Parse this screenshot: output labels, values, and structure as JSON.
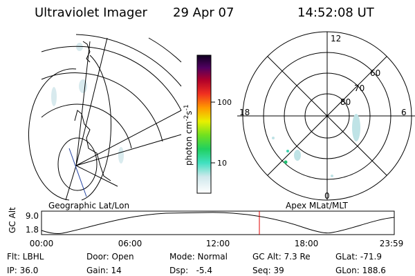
{
  "header": {
    "title": "Ultraviolet Imager",
    "date": "29 Apr 07",
    "time": "14:52:08 UT"
  },
  "map": {
    "label": "Geographic Lat/Lon"
  },
  "colorbar": {
    "label": {
      "base": "photon cm",
      "exp1": "-2",
      "mid": "s",
      "exp2": "-1"
    },
    "ticks": [
      "100",
      "10"
    ]
  },
  "polar": {
    "label": "Apex MLat/MLT",
    "mlt": {
      "top": "12",
      "left": "18",
      "right": "6",
      "bottom": "0"
    },
    "mlat": [
      "60",
      "70",
      "80"
    ]
  },
  "altitude": {
    "axis_label": "GC Alt",
    "yticks": [
      "9.0",
      "1.8"
    ],
    "xticks": [
      "00:00",
      "06:00",
      "12:00",
      "18:00",
      "23:59"
    ]
  },
  "footer": {
    "rows": [
      [
        "Flt: LBHL",
        "Door: Open",
        "Mode: Normal",
        "GC Alt: 7.3 Re",
        "GLat: -71.9"
      ],
      [
        "IP: 36.0",
        "Gain: 14",
        "Dsp:   -5.4",
        "Seq: 39",
        "GLon: 188.6"
      ]
    ]
  }
}
